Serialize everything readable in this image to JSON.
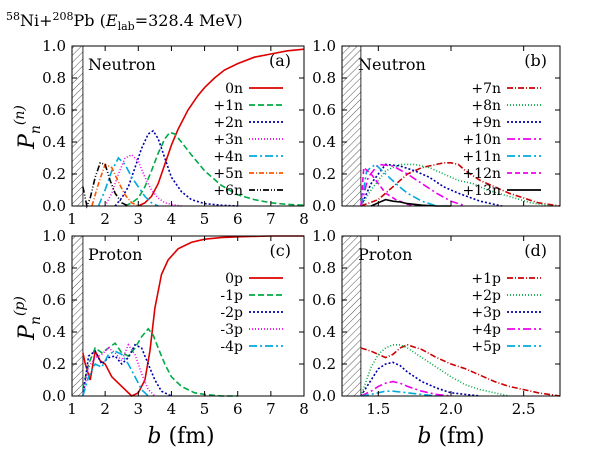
{
  "title": {
    "a_mass": "58",
    "a_sym": "Ni+",
    "b_mass": "208",
    "b_sym": "Pb (",
    "e_sym": "E",
    "e_sub": "lab",
    "e_value": "=328.4 MeV)"
  },
  "axis_labels": {
    "b_main": "b",
    "b_unit": " (fm)",
    "pn_neutron_P": "P",
    "pn_neutron_sub": "n",
    "pn_neutron_sup": "(n)",
    "pn_proton_P": "P",
    "pn_proton_sub": "n",
    "pn_proton_sup": "(p)"
  },
  "colors": {
    "red": "#dd0000",
    "green": "#00aa44",
    "blue": "#0000aa",
    "magenta": "#ee00ee",
    "cyan": "#00aadd",
    "orange": "#ff5500",
    "black": "#000000",
    "darkred": "#cc0000"
  },
  "chart_data": [
    {
      "id": "a",
      "type": "line",
      "panel_label": "(a)",
      "particle": "Neutron",
      "xlim": [
        1,
        8
      ],
      "ylim": [
        0,
        1.0
      ],
      "xticks": [
        1,
        2,
        3,
        4,
        5,
        6,
        7,
        8
      ],
      "xticklabels": [
        "1",
        "2",
        "3",
        "4",
        "5",
        "6",
        "7",
        "8"
      ],
      "yticks": [
        0,
        0.2,
        0.4,
        0.6,
        0.8,
        1.0
      ],
      "yticklabels": [
        "0.0",
        "0.2",
        "0.4",
        "0.6",
        "0.8",
        "1.0"
      ],
      "hatch_x": [
        1.0,
        1.33
      ],
      "series": [
        {
          "name": "0n",
          "color": "red",
          "dash": "",
          "x": [
            3.0,
            3.2,
            3.4,
            3.6,
            3.8,
            4.0,
            4.2,
            4.5,
            4.8,
            5.0,
            5.3,
            5.6,
            6.0,
            6.5,
            7.0,
            7.5,
            8.0
          ],
          "y": [
            0.0,
            0.02,
            0.06,
            0.14,
            0.26,
            0.38,
            0.48,
            0.6,
            0.69,
            0.74,
            0.8,
            0.85,
            0.89,
            0.93,
            0.95,
            0.97,
            0.98
          ]
        },
        {
          "name": "+1n",
          "color": "green",
          "dash": "6,3",
          "x": [
            2.6,
            2.8,
            3.0,
            3.2,
            3.4,
            3.6,
            3.8,
            3.95,
            4.1,
            4.3,
            4.6,
            5.0,
            5.5,
            6.0,
            6.5,
            7.0,
            7.5,
            8.0
          ],
          "y": [
            0.0,
            0.02,
            0.05,
            0.12,
            0.22,
            0.33,
            0.42,
            0.46,
            0.45,
            0.4,
            0.32,
            0.22,
            0.13,
            0.07,
            0.04,
            0.02,
            0.01,
            0.005
          ]
        },
        {
          "name": "+2n",
          "color": "blue",
          "dash": "2,2",
          "x": [
            2.3,
            2.5,
            2.7,
            2.9,
            3.1,
            3.3,
            3.45,
            3.6,
            3.8,
            4.0,
            4.3,
            4.6,
            5.0,
            5.5,
            6.0
          ],
          "y": [
            0.0,
            0.05,
            0.12,
            0.24,
            0.36,
            0.45,
            0.47,
            0.42,
            0.3,
            0.18,
            0.09,
            0.04,
            0.015,
            0.005,
            0.0
          ]
        },
        {
          "name": "+3n",
          "color": "magenta",
          "dash": "1,2",
          "x": [
            2.0,
            2.2,
            2.4,
            2.6,
            2.8,
            3.0,
            3.2,
            3.4,
            3.6,
            3.8,
            4.0,
            4.3
          ],
          "y": [
            0.0,
            0.08,
            0.2,
            0.3,
            0.32,
            0.28,
            0.18,
            0.1,
            0.05,
            0.02,
            0.01,
            0.0
          ]
        },
        {
          "name": "+4n",
          "color": "cyan",
          "dash": "8,3,2,3",
          "x": [
            1.8,
            2.0,
            2.2,
            2.4,
            2.6,
            2.8,
            3.0,
            3.2,
            3.4,
            3.6
          ],
          "y": [
            0.0,
            0.1,
            0.22,
            0.3,
            0.26,
            0.18,
            0.12,
            0.06,
            0.02,
            0.0
          ]
        },
        {
          "name": "+5n",
          "color": "orange",
          "dash": "5,2,1,2",
          "x": [
            1.6,
            1.8,
            2.0,
            2.2,
            2.4,
            2.6,
            2.8,
            3.0
          ],
          "y": [
            0.0,
            0.14,
            0.26,
            0.24,
            0.15,
            0.07,
            0.02,
            0.0
          ]
        },
        {
          "name": "+6n",
          "color": "black",
          "dash": "6,2,1,2,1,2",
          "x": [
            1.33,
            1.45,
            1.55,
            1.7,
            1.85,
            2.0,
            2.15,
            2.3,
            2.5,
            2.7
          ],
          "y": [
            0.12,
            0.0,
            0.05,
            0.18,
            0.27,
            0.26,
            0.16,
            0.08,
            0.02,
            0.0
          ]
        }
      ]
    },
    {
      "id": "b",
      "type": "line",
      "panel_label": "(b)",
      "particle": "Neutron",
      "xlim": [
        1.25,
        2.75
      ],
      "ylim": [
        0,
        1.0
      ],
      "xticks": [
        1.5,
        2.0,
        2.5
      ],
      "xticklabels": [
        "",
        "",
        ""
      ],
      "yticks": [
        0,
        0.2,
        0.4,
        0.6,
        0.8,
        1.0
      ],
      "yticklabels": [
        "0.0",
        "0.2",
        "0.4",
        "0.6",
        "0.8",
        "1.0"
      ],
      "hatch_x": [
        1.25,
        1.38
      ],
      "series": [
        {
          "name": "+7n",
          "color": "darkred",
          "dash": "6,2,1,2",
          "x": [
            1.38,
            1.5,
            1.6,
            1.7,
            1.8,
            1.9,
            1.95,
            2.0,
            2.05,
            2.1,
            2.2,
            2.3,
            2.4,
            2.5,
            2.6,
            2.75
          ],
          "y": [
            0.0,
            0.04,
            0.12,
            0.2,
            0.24,
            0.26,
            0.27,
            0.27,
            0.26,
            0.22,
            0.16,
            0.12,
            0.08,
            0.05,
            0.02,
            0.0
          ]
        },
        {
          "name": "+8n",
          "color": "green",
          "dash": "1,2",
          "x": [
            1.38,
            1.45,
            1.55,
            1.65,
            1.75,
            1.85,
            1.95,
            2.05,
            2.15,
            2.25,
            2.4,
            2.55,
            2.7
          ],
          "y": [
            0.0,
            0.1,
            0.22,
            0.26,
            0.26,
            0.24,
            0.2,
            0.16,
            0.14,
            0.1,
            0.06,
            0.02,
            0.0
          ]
        },
        {
          "name": "+9n",
          "color": "blue",
          "dash": "2,2",
          "x": [
            1.38,
            1.45,
            1.55,
            1.65,
            1.75,
            1.85,
            1.95,
            2.05,
            2.2,
            2.35
          ],
          "y": [
            0.0,
            0.14,
            0.26,
            0.25,
            0.22,
            0.18,
            0.12,
            0.08,
            0.03,
            0.0
          ]
        },
        {
          "name": "+10n",
          "color": "magenta",
          "dash": "8,3,2,3",
          "x": [
            1.38,
            1.43,
            1.5,
            1.6,
            1.7,
            1.8,
            1.9,
            2.0,
            2.1
          ],
          "y": [
            0.0,
            0.18,
            0.26,
            0.25,
            0.2,
            0.14,
            0.08,
            0.03,
            0.0
          ]
        },
        {
          "name": "+11n",
          "color": "cyan",
          "dash": "8,3,2,3",
          "x": [
            1.38,
            1.42,
            1.48,
            1.55,
            1.62,
            1.7,
            1.8,
            1.9
          ],
          "y": [
            0.0,
            0.22,
            0.26,
            0.2,
            0.14,
            0.08,
            0.03,
            0.0
          ]
        },
        {
          "name": "+12n",
          "color": "magenta",
          "dash": "5,3",
          "x": [
            1.38,
            1.4,
            1.45,
            1.5,
            1.55,
            1.62,
            1.7,
            1.8
          ],
          "y": [
            0.0,
            0.24,
            0.2,
            0.14,
            0.08,
            0.04,
            0.01,
            0.0
          ]
        },
        {
          "name": "+13n",
          "color": "black",
          "dash": "",
          "x": [
            1.45,
            1.5,
            1.55,
            1.6,
            1.65,
            1.7,
            1.8,
            1.9,
            2.0
          ],
          "y": [
            0.0,
            0.02,
            0.04,
            0.03,
            0.025,
            0.015,
            0.005,
            0.0,
            0.0
          ]
        }
      ]
    },
    {
      "id": "c",
      "type": "line",
      "panel_label": "(c)",
      "particle": "Proton",
      "xlim": [
        1,
        8
      ],
      "ylim": [
        0,
        1.0
      ],
      "xticks": [
        1,
        2,
        3,
        4,
        5,
        6,
        7,
        8
      ],
      "xticklabels": [
        "1",
        "2",
        "3",
        "4",
        "5",
        "6",
        "7",
        "8"
      ],
      "yticks": [
        0,
        0.2,
        0.4,
        0.6,
        0.8,
        1.0
      ],
      "yticklabels": [
        "0.0",
        "0.2",
        "0.4",
        "0.6",
        "0.8",
        "1.0"
      ],
      "hatch_x": [
        1.0,
        1.33
      ],
      "series": [
        {
          "name": "0p",
          "color": "red",
          "dash": "",
          "x": [
            1.33,
            1.4,
            1.55,
            1.7,
            1.85,
            2.0,
            2.2,
            2.4,
            2.6,
            2.8,
            3.0,
            3.2,
            3.35,
            3.5,
            3.7,
            3.9,
            4.2,
            4.6,
            5.0,
            5.5,
            6.0,
            7.0,
            8.0
          ],
          "y": [
            0.27,
            0.2,
            0.1,
            0.28,
            0.22,
            0.2,
            0.12,
            0.08,
            0.04,
            0.0,
            0.02,
            0.1,
            0.28,
            0.55,
            0.76,
            0.85,
            0.92,
            0.96,
            0.98,
            0.99,
            0.995,
            1.0,
            1.0
          ]
        },
        {
          "name": "-1p",
          "color": "green",
          "dash": "6,3",
          "x": [
            1.33,
            1.5,
            1.7,
            1.9,
            2.1,
            2.3,
            2.5,
            2.7,
            2.9,
            3.1,
            3.3,
            3.45,
            3.6,
            3.8,
            4.0,
            4.3,
            4.7,
            5.0,
            5.5,
            6.0
          ],
          "y": [
            0.05,
            0.2,
            0.3,
            0.27,
            0.3,
            0.33,
            0.27,
            0.25,
            0.3,
            0.37,
            0.42,
            0.38,
            0.3,
            0.2,
            0.12,
            0.06,
            0.02,
            0.01,
            0.0,
            0.0
          ]
        },
        {
          "name": "-2p",
          "color": "blue",
          "dash": "2,2",
          "x": [
            1.33,
            1.5,
            1.7,
            1.9,
            2.1,
            2.3,
            2.5,
            2.7,
            2.9,
            3.1,
            3.3,
            3.5,
            3.7,
            4.0
          ],
          "y": [
            0.0,
            0.25,
            0.28,
            0.2,
            0.24,
            0.25,
            0.2,
            0.24,
            0.32,
            0.3,
            0.2,
            0.1,
            0.03,
            0.0
          ]
        },
        {
          "name": "-3p",
          "color": "magenta",
          "dash": "1,2",
          "x": [
            1.33,
            1.5,
            1.7,
            1.9,
            2.1,
            2.3,
            2.5,
            2.7,
            2.9,
            3.1,
            3.3,
            3.5
          ],
          "y": [
            0.0,
            0.18,
            0.24,
            0.26,
            0.3,
            0.27,
            0.22,
            0.32,
            0.26,
            0.14,
            0.04,
            0.0
          ]
        },
        {
          "name": "-4p",
          "color": "cyan",
          "dash": "8,3,2,3",
          "x": [
            1.33,
            1.5,
            1.7,
            1.9,
            2.1,
            2.3,
            2.5,
            2.7,
            2.9,
            3.1,
            3.3
          ],
          "y": [
            0.0,
            0.12,
            0.2,
            0.18,
            0.26,
            0.28,
            0.26,
            0.2,
            0.12,
            0.04,
            0.0
          ]
        }
      ]
    },
    {
      "id": "d",
      "type": "line",
      "panel_label": "(d)",
      "particle": "Proton",
      "xlim": [
        1.25,
        2.75
      ],
      "ylim": [
        0,
        1.0
      ],
      "xticks": [
        1.5,
        2.0,
        2.5
      ],
      "xticklabels": [
        "1.5",
        "2.0",
        "2.5"
      ],
      "yticks": [
        0,
        0.2,
        0.4,
        0.6,
        0.8,
        1.0
      ],
      "yticklabels": [
        "0.0",
        "0.2",
        "0.4",
        "0.6",
        "0.8",
        "1.0"
      ],
      "hatch_x": [
        1.25,
        1.38
      ],
      "series": [
        {
          "name": "+1p",
          "color": "darkred",
          "dash": "6,2,1,2",
          "x": [
            1.38,
            1.45,
            1.5,
            1.55,
            1.6,
            1.65,
            1.7,
            1.8,
            1.9,
            2.0,
            2.1,
            2.2,
            2.3,
            2.4,
            2.5,
            2.6,
            2.75
          ],
          "y": [
            0.3,
            0.28,
            0.26,
            0.24,
            0.26,
            0.3,
            0.32,
            0.29,
            0.24,
            0.2,
            0.17,
            0.13,
            0.09,
            0.06,
            0.04,
            0.02,
            0.0
          ]
        },
        {
          "name": "+2p",
          "color": "green",
          "dash": "1,2",
          "x": [
            1.38,
            1.45,
            1.5,
            1.55,
            1.6,
            1.65,
            1.7,
            1.8,
            1.9,
            2.0,
            2.1,
            2.2,
            2.3,
            2.4
          ],
          "y": [
            0.0,
            0.18,
            0.26,
            0.3,
            0.32,
            0.32,
            0.3,
            0.24,
            0.18,
            0.12,
            0.07,
            0.04,
            0.02,
            0.0
          ]
        },
        {
          "name": "+3p",
          "color": "blue",
          "dash": "2,2",
          "x": [
            1.38,
            1.45,
            1.5,
            1.55,
            1.6,
            1.65,
            1.7,
            1.8,
            1.9,
            2.0,
            2.1,
            2.2
          ],
          "y": [
            0.0,
            0.1,
            0.17,
            0.2,
            0.21,
            0.19,
            0.15,
            0.09,
            0.05,
            0.02,
            0.01,
            0.0
          ]
        },
        {
          "name": "+4p",
          "color": "magenta",
          "dash": "8,3,2,3",
          "x": [
            1.38,
            1.45,
            1.5,
            1.55,
            1.6,
            1.65,
            1.7,
            1.8,
            1.9,
            2.0
          ],
          "y": [
            0.0,
            0.03,
            0.06,
            0.08,
            0.09,
            0.08,
            0.06,
            0.03,
            0.01,
            0.0
          ]
        },
        {
          "name": "+5p",
          "color": "cyan",
          "dash": "8,3,2,3",
          "x": [
            1.38,
            1.45,
            1.5,
            1.55,
            1.6,
            1.65,
            1.7,
            1.8,
            1.9
          ],
          "y": [
            0.0,
            0.01,
            0.02,
            0.03,
            0.03,
            0.025,
            0.02,
            0.01,
            0.0
          ]
        }
      ]
    }
  ]
}
